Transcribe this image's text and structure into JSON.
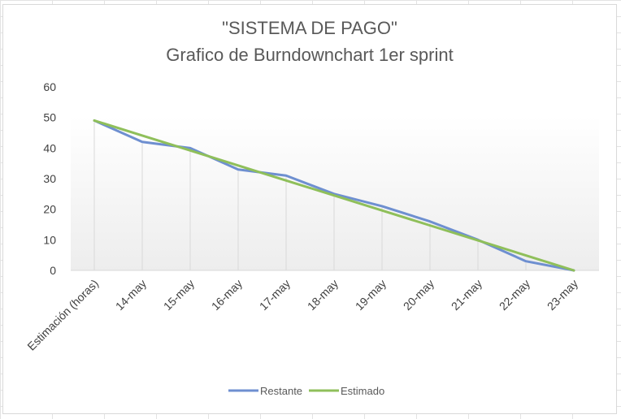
{
  "chart_data": {
    "type": "line",
    "title": "\"SISTEMA DE PAGO\"",
    "subtitle": "Grafico de Burndownchart 1er sprint",
    "categories": [
      "Estimación (horas)",
      "14-may",
      "15-may",
      "16-may",
      "17-may",
      "18-may",
      "19-may",
      "20-may",
      "21-may",
      "22-may",
      "23-may"
    ],
    "series": [
      {
        "name": "Restante",
        "color": "#6e8fd0",
        "values": [
          49,
          42,
          40,
          33,
          31,
          25,
          21,
          16,
          10,
          3,
          0
        ]
      },
      {
        "name": "Estimado",
        "color": "#8fbf5a",
        "values": [
          49,
          44.1,
          39.2,
          34.3,
          29.4,
          24.5,
          19.6,
          14.7,
          9.8,
          4.9,
          0
        ]
      }
    ],
    "ylim": [
      0,
      60
    ],
    "yticks": [
      0,
      10,
      20,
      30,
      40,
      50,
      60
    ],
    "xlabel": "",
    "ylabel": "",
    "grid": "vertical",
    "legend": "bottom"
  }
}
